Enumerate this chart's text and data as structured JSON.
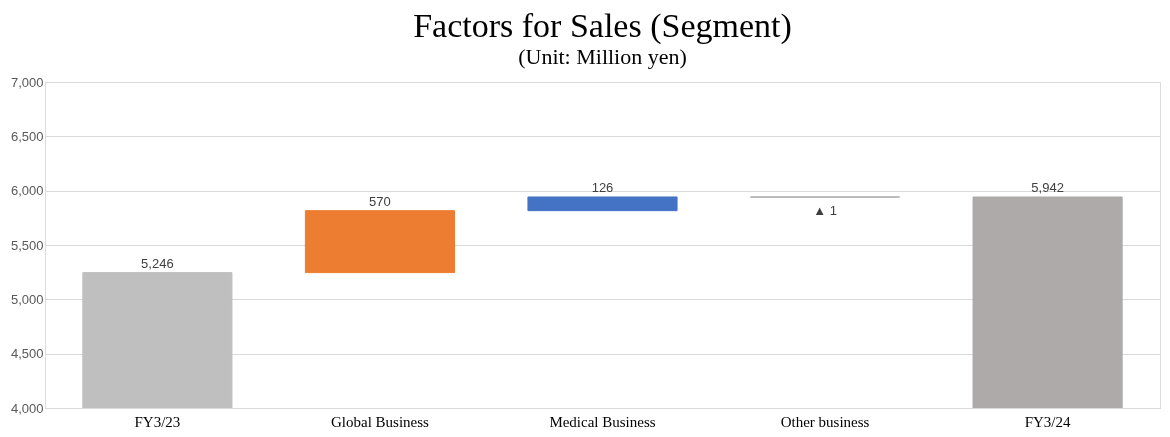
{
  "chart_data": {
    "type": "bar",
    "title": "Factors for Sales (Segment)",
    "subtitle": "(Unit: Million yen)",
    "categories": [
      "FY3/23",
      "Global Business",
      "Medical Business",
      "Other business",
      "FY3/24"
    ],
    "values": [
      1246,
      570,
      126,
      -1,
      1942
    ],
    "base": [
      4000,
      5246,
      5816,
      5942,
      4000
    ],
    "colors": [
      "#bfbfbf",
      "#ed7d31",
      "#4472c4",
      "#a5a5a5",
      "#aeaaaa"
    ],
    "value_labels": [
      "5,246",
      "570",
      "126",
      "▲ 1",
      "5,942"
    ],
    "ylim": [
      4000,
      7000
    ],
    "yticks": [
      {
        "value": 4000,
        "label": "4,000"
      },
      {
        "value": 4500,
        "label": "4,500"
      },
      {
        "value": 5000,
        "label": "5,000"
      },
      {
        "value": 5500,
        "label": "5,500"
      },
      {
        "value": 6000,
        "label": "6,000"
      },
      {
        "value": 6500,
        "label": "6,500"
      },
      {
        "value": 7000,
        "label": "7,000"
      }
    ],
    "grid": "y"
  }
}
